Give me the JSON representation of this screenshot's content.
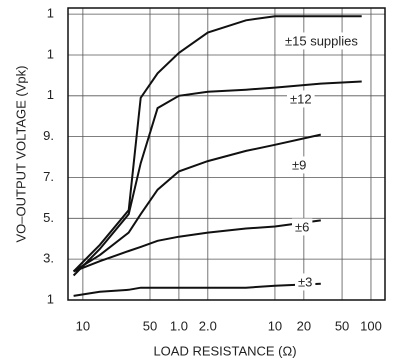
{
  "chart_data": {
    "type": "line",
    "x_label": "LOAD RESISTANCE (Ω)",
    "y_label": "VO–OUTPUT VOLTAGE (Vpk)",
    "x_log": true,
    "grid": true,
    "color": "#111111",
    "x": [
      8,
      15,
      30,
      40,
      60,
      100,
      200,
      500,
      1000,
      3000,
      8000
    ],
    "xlim": [
      7,
      14000
    ],
    "xticks": [
      {
        "value": 10,
        "label": "10"
      },
      {
        "value": 50,
        "label": "50"
      },
      {
        "value": 100,
        "label": "1.0"
      },
      {
        "value": 200,
        "label": "2.0"
      },
      {
        "value": 1000,
        "label": "10"
      },
      {
        "value": 2000,
        "label": "20"
      },
      {
        "value": 5000,
        "label": "50"
      },
      {
        "value": 10000,
        "label": "100"
      }
    ],
    "ylim": [
      1,
      15.3
    ],
    "yticks": [
      {
        "value": 15,
        "label": "1"
      },
      {
        "value": 13,
        "label": "1"
      },
      {
        "value": 11,
        "label": "1"
      },
      {
        "value": 9,
        "label": "9."
      },
      {
        "value": 7,
        "label": "7."
      },
      {
        "value": 5,
        "label": "5."
      },
      {
        "value": 3,
        "label": "3."
      },
      1
    ],
    "series": [
      {
        "name": "±15 supplies",
        "values": [
          2.4,
          3.7,
          5.4,
          10.9,
          12.1,
          13.1,
          14.1,
          14.7,
          14.9,
          14.9,
          14.9
        ]
      },
      {
        "name": "±12",
        "values": [
          2.2,
          3.5,
          5.2,
          7.7,
          10.4,
          11.0,
          11.2,
          11.3,
          11.4,
          11.6,
          11.7
        ]
      },
      {
        "name": "±9",
        "values": [
          2.4,
          3.2,
          4.3,
          5.2,
          6.4,
          7.3,
          7.8,
          8.3,
          8.6,
          9.1,
          null
        ]
      },
      {
        "name": "±6",
        "values": [
          2.4,
          2.9,
          3.4,
          3.6,
          3.9,
          4.1,
          4.3,
          4.5,
          4.6,
          4.9,
          null
        ]
      },
      {
        "name": "±3",
        "values": [
          1.2,
          1.4,
          1.5,
          1.6,
          1.6,
          1.6,
          1.6,
          1.6,
          1.7,
          1.8,
          null
        ]
      }
    ]
  }
}
